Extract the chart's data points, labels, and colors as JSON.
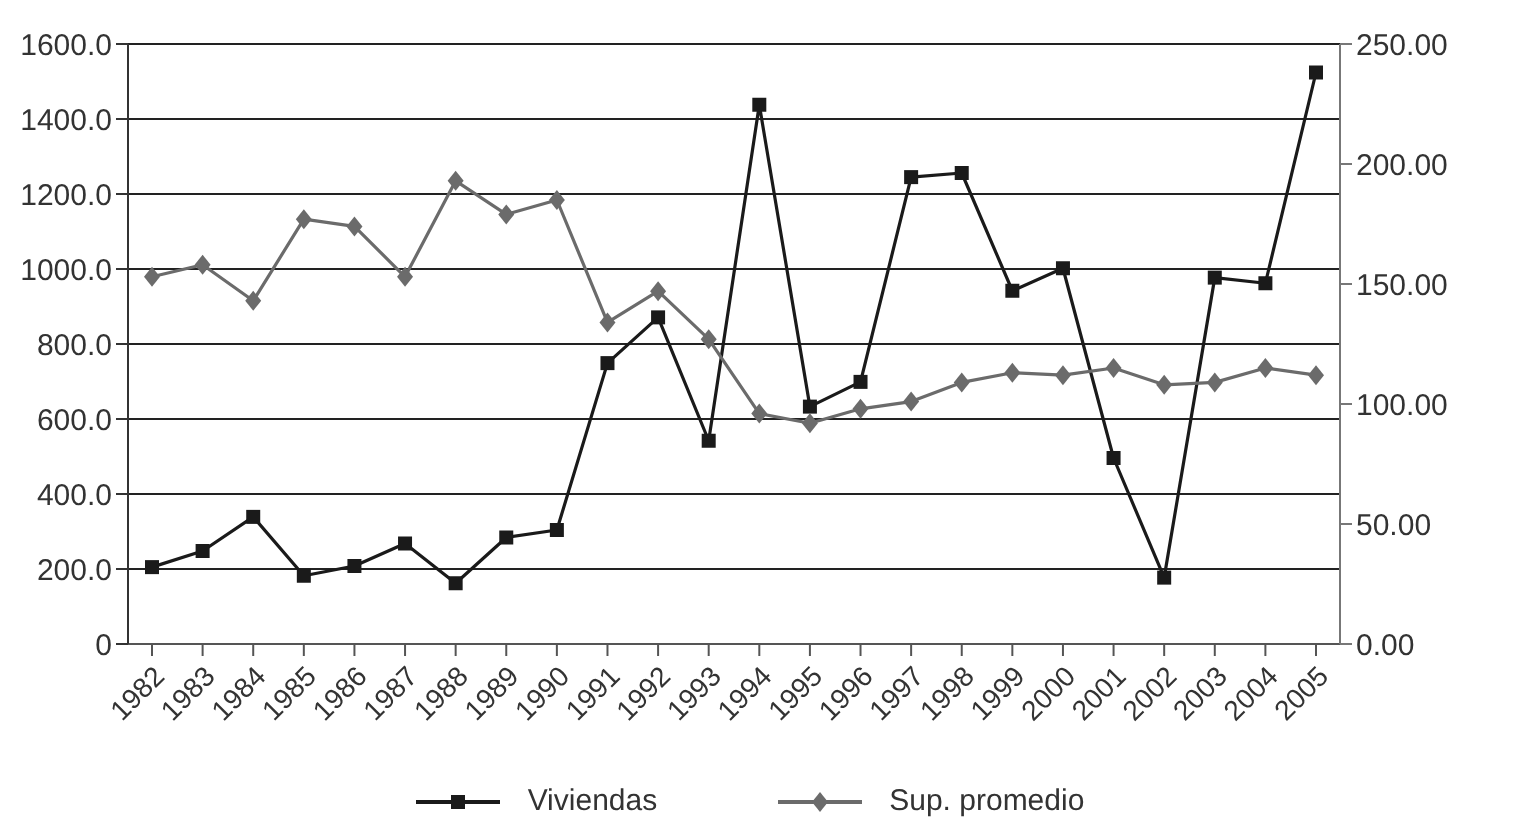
{
  "chart_data": {
    "type": "line",
    "categories": [
      "1982",
      "1983",
      "1984",
      "1985",
      "1986",
      "1987",
      "1988",
      "1989",
      "1990",
      "1991",
      "1992",
      "1993",
      "1994",
      "1995",
      "1996",
      "1997",
      "1998",
      "1999",
      "2000",
      "2001",
      "2002",
      "2003",
      "2004",
      "2005"
    ],
    "series": [
      {
        "name": "Viviendas",
        "color": "#1a1a1a",
        "marker": "square",
        "values": [
          205,
          248,
          339,
          182,
          208,
          268,
          162,
          284,
          304,
          749,
          871,
          542,
          1438,
          633,
          699,
          1245,
          1256,
          942,
          1002,
          496,
          177,
          977,
          962,
          1524
        ]
      },
      {
        "name": "Sup. promedio",
        "color": "#6b6b6b",
        "marker": "diamond",
        "axis": "y2",
        "values": [
          153,
          158,
          143,
          177,
          174,
          153,
          193,
          179,
          185,
          134,
          147,
          127,
          96,
          92,
          98,
          101,
          109,
          113,
          112,
          115,
          108,
          109,
          115,
          112
        ]
      }
    ],
    "ylim": [
      0,
      1600
    ],
    "yticks": [
      {
        "value": 0,
        "label": "0"
      },
      {
        "value": 200,
        "label": "200.0"
      },
      {
        "value": 400,
        "label": "400.0"
      },
      {
        "value": 600,
        "label": "600.0"
      },
      {
        "value": 800,
        "label": "800.0"
      },
      {
        "value": 1000,
        "label": "1000.0"
      },
      {
        "value": 1200,
        "label": "1200.0"
      },
      {
        "value": 1400,
        "label": "1400.0"
      },
      {
        "value": 1600,
        "label": "1600.0"
      }
    ],
    "y2lim": [
      0,
      250
    ],
    "y2ticks": [
      {
        "value": 0,
        "label": "0.00"
      },
      {
        "value": 50,
        "label": "50.00"
      },
      {
        "value": 100,
        "label": "100.00"
      },
      {
        "value": 150,
        "label": "150.00"
      },
      {
        "value": 200,
        "label": "200.00"
      },
      {
        "value": 250,
        "label": "250.00"
      }
    ],
    "grid": "y",
    "legend": "bottom",
    "line_style": "solid"
  }
}
